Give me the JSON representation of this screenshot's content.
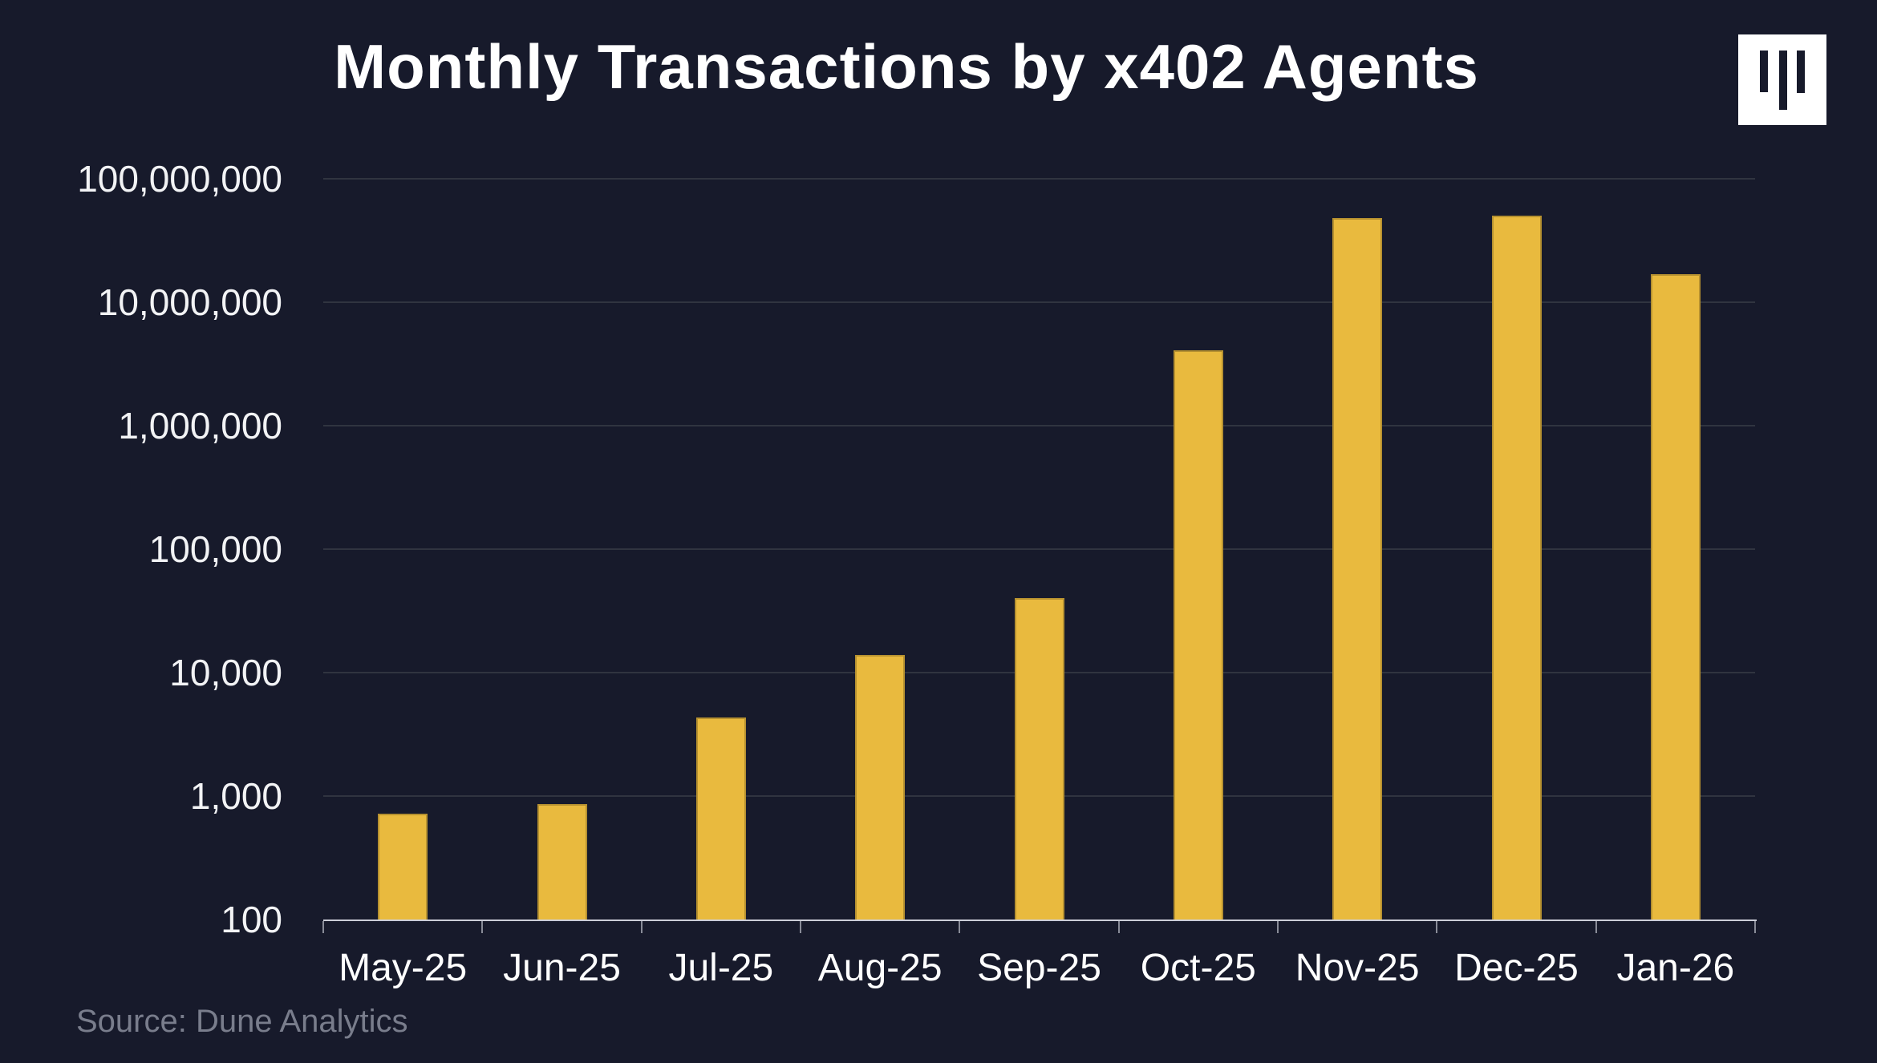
{
  "title": "Monthly Transactions by x402 Agents",
  "source": "Source: Dune Analytics",
  "logo": {
    "icon": "three-vertical-bars-logo",
    "background": "#ffffff",
    "bar_color": "#171a2b"
  },
  "colors": {
    "background": "#171a2b",
    "bar": "#e9ba3e",
    "gridline": "#303440",
    "axis_line": "#ccced8",
    "tick": "#898c98",
    "axis_text": "#f2f3f5",
    "source_text": "#797d8c",
    "title_text": "#ffffff"
  },
  "chart_data": {
    "type": "bar",
    "title": "Monthly Transactions by x402 Agents",
    "xlabel": "",
    "ylabel": "",
    "categories": [
      "May-25",
      "Jun-25",
      "Jul-25",
      "Aug-25",
      "Sep-25",
      "Oct-25",
      "Nov-25",
      "Dec-25",
      "Jan-26"
    ],
    "values": [
      720,
      860,
      4300,
      14000,
      40000,
      4100000,
      48000000,
      50000000,
      17000000
    ],
    "y_scale": "log10",
    "ylim": [
      100,
      100000000
    ],
    "y_ticks": [
      {
        "value": 100,
        "label": "100"
      },
      {
        "value": 1000,
        "label": "1,000"
      },
      {
        "value": 10000,
        "label": "10,000"
      },
      {
        "value": 100000,
        "label": "100,000"
      },
      {
        "value": 1000000,
        "label": "1,000,000"
      },
      {
        "value": 10000000,
        "label": "10,000,000"
      },
      {
        "value": 100000000,
        "label": "100,000,000"
      }
    ],
    "grid": "horizontal-decade-lines",
    "legend": "none",
    "source": "Source: Dune Analytics"
  }
}
